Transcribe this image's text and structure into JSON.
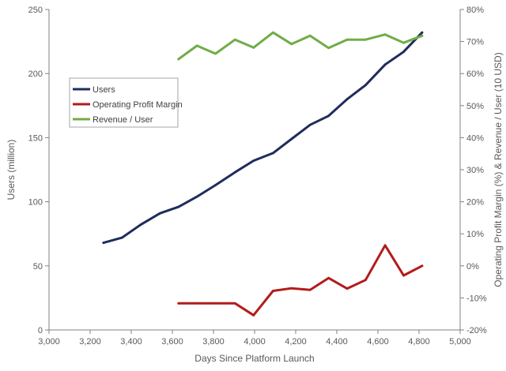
{
  "chart_data": {
    "type": "line",
    "xlabel": "Days Since Platform Launch",
    "ylabel": "Users (million)",
    "y2label": "Operating Profit Margin (%) & Revenue / User (10 USD)",
    "xlim": [
      3000,
      5000
    ],
    "ylim": [
      0,
      250
    ],
    "y2lim": [
      -20,
      80
    ],
    "x_ticks": [
      "3,000",
      "3,200",
      "3,400",
      "3,600",
      "3,800",
      "4,000",
      "4,200",
      "4,400",
      "4,600",
      "4,800",
      "5,000"
    ],
    "y_ticks": [
      "0",
      "50",
      "100",
      "150",
      "200",
      "250"
    ],
    "y2_ticks": [
      "-20%",
      "-10%",
      "0%",
      "10%",
      "20%",
      "30%",
      "40%",
      "50%",
      "60%",
      "70%",
      "80%"
    ],
    "grid": false,
    "legend_position": "top-left",
    "series": [
      {
        "name": "Users",
        "axis": "left",
        "color": "#1f2d5c",
        "x": [
          3265,
          3355,
          3445,
          3540,
          3630,
          3720,
          3810,
          3905,
          3995,
          4090,
          4180,
          4270,
          4360,
          4450,
          4540,
          4635,
          4725,
          4815
        ],
        "y": [
          68,
          72,
          82,
          91,
          96,
          104,
          113,
          123,
          132,
          138,
          149,
          160,
          167,
          180,
          191,
          207,
          217,
          232
        ]
      },
      {
        "name": "Operating Profit Margin",
        "axis": "right",
        "color": "#b31b1b",
        "x": [
          3630,
          3720,
          3810,
          3905,
          3995,
          4090,
          4180,
          4270,
          4360,
          4450,
          4540,
          4635,
          4725,
          4815
        ],
        "y": [
          -11.7,
          -11.7,
          -11.7,
          -11.7,
          -15.4,
          -7.8,
          -7.0,
          -7.5,
          -3.8,
          -7.1,
          -4.4,
          6.4,
          -3.0,
          0.0
        ]
      },
      {
        "name": "Revenue / User",
        "axis": "right",
        "color": "#70ad47",
        "x": [
          3630,
          3720,
          3810,
          3905,
          3995,
          4090,
          4180,
          4270,
          4360,
          4450,
          4540,
          4635,
          4725,
          4815
        ],
        "y": [
          64.5,
          68.7,
          66.2,
          70.6,
          68.1,
          72.8,
          69.2,
          71.8,
          68.0,
          70.6,
          70.6,
          72.2,
          69.6,
          71.8
        ]
      }
    ]
  }
}
